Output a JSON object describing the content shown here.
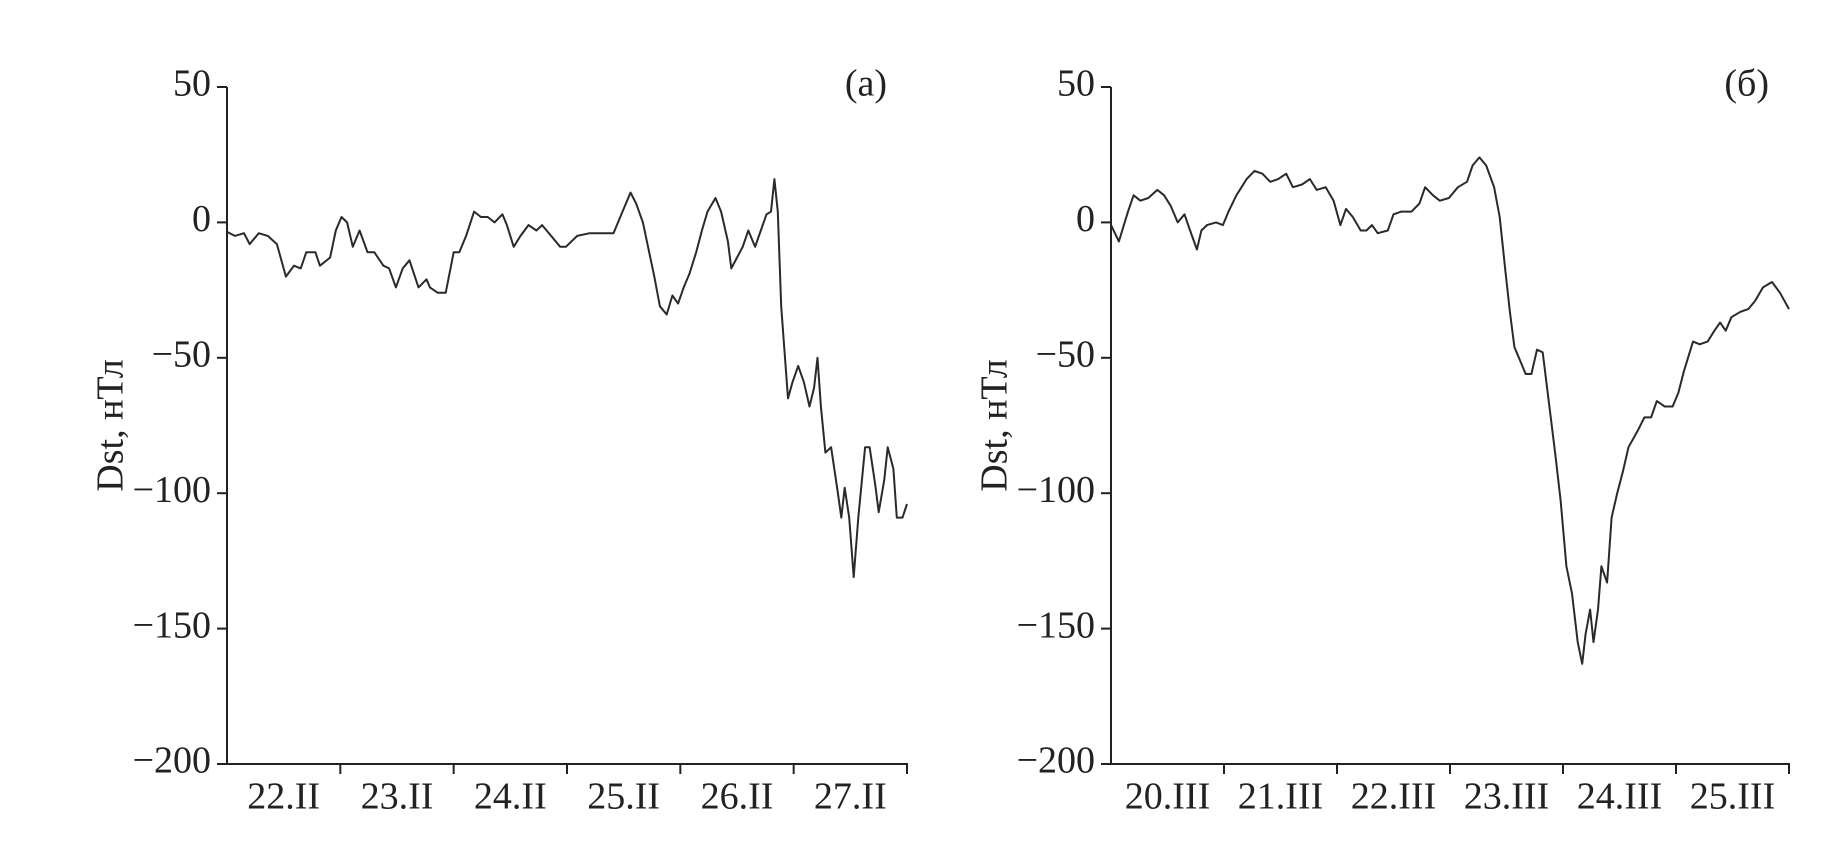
{
  "chart_data": [
    {
      "type": "line",
      "label": "(a)",
      "ylabel": "Dst, нТл",
      "color": "#2a2a2a",
      "categories": [
        "22.II",
        "23.II",
        "24.II",
        "25.II",
        "26.II",
        "27.II"
      ],
      "xlim": [
        0,
        6
      ],
      "ylim": [
        -200,
        50
      ],
      "yticks": [
        {
          "value": -200,
          "label": "−200"
        },
        {
          "value": -150,
          "label": "−150"
        },
        {
          "value": -100,
          "label": "−100"
        },
        {
          "value": -50,
          "label": "−50"
        },
        0,
        50
      ],
      "x": [
        0,
        0.07,
        0.15,
        0.2,
        0.28,
        0.36,
        0.44,
        0.52,
        0.59,
        0.65,
        0.7,
        0.78,
        0.82,
        0.91,
        0.96,
        1.01,
        1.06,
        1.11,
        1.17,
        1.24,
        1.3,
        1.38,
        1.43,
        1.49,
        1.55,
        1.61,
        1.69,
        1.76,
        1.79,
        1.86,
        1.93,
        2,
        2.05,
        2.11,
        2.18,
        2.24,
        2.3,
        2.36,
        2.43,
        2.47,
        2.53,
        2.59,
        2.66,
        2.73,
        2.78,
        2.86,
        2.94,
        2.99,
        3.09,
        3.2,
        3.3,
        3.41,
        3.49,
        3.56,
        3.61,
        3.67,
        3.72,
        3.77,
        3.82,
        3.88,
        3.93,
        3.98,
        4.03,
        4.08,
        4.14,
        4.19,
        4.24,
        4.31,
        4.36,
        4.42,
        4.45,
        4.5,
        4.55,
        4.6,
        4.66,
        4.71,
        4.76,
        4.8,
        4.83,
        4.86,
        4.89,
        4.92,
        4.95,
        4.99,
        5.04,
        5.09,
        5.14,
        5.18,
        5.21,
        5.24,
        5.28,
        5.33,
        5.39,
        5.42,
        5.45,
        5.49,
        5.53,
        5.57,
        5.63,
        5.67,
        5.72,
        5.75,
        5.8,
        5.83,
        5.88,
        5.91,
        5.96,
        6
      ],
      "values": [
        -3.5,
        -5,
        -4,
        -8,
        -4,
        -5,
        -8,
        -20,
        -16,
        -17,
        -11,
        -11,
        -16,
        -13,
        -3,
        2,
        0,
        -9,
        -3,
        -11,
        -11,
        -16,
        -17,
        -24,
        -17,
        -14,
        -24,
        -21,
        -24,
        -26,
        -26,
        -11,
        -11,
        -5,
        4,
        2,
        2,
        0,
        3,
        -1,
        -9,
        -5,
        -1,
        -3,
        -1,
        -5,
        -9,
        -9,
        -5,
        -4,
        -4,
        -4,
        4,
        11,
        7,
        0,
        -10,
        -20,
        -31,
        -34,
        -27,
        -30,
        -24,
        -19,
        -11,
        -3,
        4,
        9,
        4,
        -7,
        -17,
        -13,
        -9,
        -3,
        -9,
        -3,
        3,
        4,
        16,
        4,
        -31,
        -48,
        -65,
        -59,
        -53,
        -59,
        -68,
        -61,
        -50,
        -68,
        -85,
        -83,
        -100,
        -109,
        -98,
        -109,
        -131,
        -109,
        -83,
        -83,
        -97,
        -107,
        -95,
        -83,
        -91,
        -109,
        -109,
        -104
      ]
    },
    {
      "type": "line",
      "label": "(б)",
      "ylabel": "Dst, нТл",
      "color": "#2a2a2a",
      "categories": [
        "20.III",
        "21.III",
        "22.III",
        "23.III",
        "24.III",
        "25.III"
      ],
      "xlim": [
        0,
        6
      ],
      "ylim": [
        -200,
        50
      ],
      "yticks": [
        {
          "value": -200,
          "label": "−200"
        },
        {
          "value": -150,
          "label": "−150"
        },
        {
          "value": -100,
          "label": "−100"
        },
        {
          "value": -50,
          "label": "−50"
        },
        0,
        50
      ],
      "x": [
        0,
        0.07,
        0.15,
        0.2,
        0.26,
        0.33,
        0.41,
        0.47,
        0.53,
        0.59,
        0.65,
        0.7,
        0.76,
        0.8,
        0.85,
        0.93,
        0.99,
        1.04,
        1.11,
        1.2,
        1.27,
        1.34,
        1.41,
        1.48,
        1.55,
        1.61,
        1.69,
        1.76,
        1.82,
        1.9,
        1.97,
        2.03,
        2.08,
        2.14,
        2.21,
        2.26,
        2.31,
        2.36,
        2.45,
        2.5,
        2.57,
        2.66,
        2.73,
        2.78,
        2.85,
        2.91,
        2.99,
        3.07,
        3.15,
        3.2,
        3.26,
        3.32,
        3.39,
        3.44,
        3.49,
        3.53,
        3.57,
        3.61,
        3.67,
        3.72,
        3.77,
        3.82,
        3.88,
        3.93,
        3.98,
        4.03,
        4.08,
        4.13,
        4.17,
        4.2,
        4.24,
        4.27,
        4.31,
        4.34,
        4.39,
        4.43,
        4.48,
        4.53,
        4.58,
        4.66,
        4.72,
        4.78,
        4.83,
        4.9,
        4.97,
        5.02,
        5.07,
        5.15,
        5.21,
        5.28,
        5.34,
        5.39,
        5.44,
        5.49,
        5.57,
        5.64,
        5.7,
        5.77,
        5.85,
        5.92,
        6
      ],
      "values": [
        -1,
        -7,
        4,
        10,
        8,
        9,
        12,
        10,
        6,
        0,
        3,
        -3,
        -10,
        -3,
        -1,
        0,
        -1,
        4,
        10,
        16,
        19,
        18,
        15,
        16,
        18,
        13,
        14,
        16,
        12,
        13,
        8,
        -1,
        5,
        2,
        -3,
        -3,
        -1,
        -4,
        -3,
        3,
        4,
        4,
        7,
        13,
        10,
        8,
        9,
        13,
        15,
        21,
        24,
        21,
        13,
        2,
        -18,
        -33,
        -46,
        -50,
        -56,
        -56,
        -47,
        -48,
        -68,
        -85,
        -103,
        -127,
        -137,
        -155,
        -163,
        -152,
        -143,
        -155,
        -143,
        -127,
        -133,
        -109,
        -100,
        -92,
        -83,
        -77,
        -72,
        -72,
        -66,
        -68,
        -68,
        -63,
        -55,
        -44,
        -45,
        -44,
        -40,
        -37,
        -40,
        -35,
        -33,
        -32,
        -29,
        -24,
        -22,
        -26,
        -32
      ]
    }
  ]
}
